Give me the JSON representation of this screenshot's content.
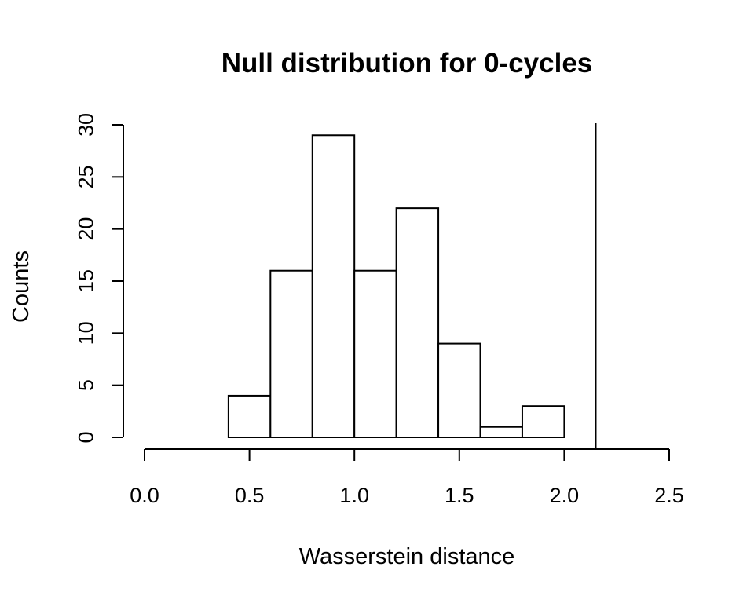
{
  "chart_data": {
    "type": "bar",
    "title": "Null distribution for 0-cycles",
    "xlabel": "Wasserstein distance",
    "ylabel": "Counts",
    "bins": [
      {
        "x0": 0.4,
        "x1": 0.6,
        "count": 4
      },
      {
        "x0": 0.6,
        "x1": 0.8,
        "count": 16
      },
      {
        "x0": 0.8,
        "x1": 1.0,
        "count": 29
      },
      {
        "x0": 1.0,
        "x1": 1.2,
        "count": 16
      },
      {
        "x0": 1.2,
        "x1": 1.4,
        "count": 22
      },
      {
        "x0": 1.4,
        "x1": 1.6,
        "count": 9
      },
      {
        "x0": 1.6,
        "x1": 1.8,
        "count": 1
      },
      {
        "x0": 1.8,
        "x1": 2.0,
        "count": 3
      }
    ],
    "xlim": [
      0.0,
      2.5
    ],
    "ylim": [
      0,
      30
    ],
    "xticks": [
      "0.0",
      "0.5",
      "1.0",
      "1.5",
      "2.0",
      "2.5"
    ],
    "yticks": [
      "0",
      "5",
      "10",
      "15",
      "20",
      "25",
      "30"
    ],
    "reference_line_x": 2.15,
    "grid": false
  }
}
